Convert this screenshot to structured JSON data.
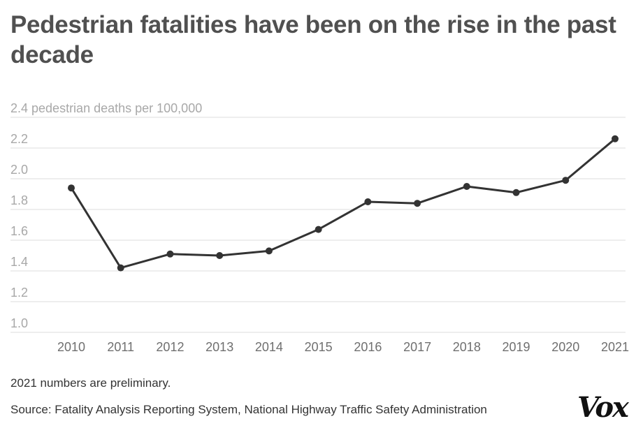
{
  "title": "Pedestrian fatalities have been on the rise in the past decade",
  "note": "2021 numbers are preliminary.",
  "source": "Source: Fatality Analysis Reporting System, National Highway Traffic Safety Administration",
  "logo": "Vox",
  "chart_data": {
    "type": "line",
    "title": "",
    "xlabel": "",
    "ylabel": "pedestrian deaths per 100,000",
    "x": [
      "2010",
      "2011",
      "2012",
      "2013",
      "2014",
      "2015",
      "2016",
      "2017",
      "2018",
      "2019",
      "2020",
      "2021"
    ],
    "series": [
      {
        "name": "",
        "values": [
          1.94,
          1.42,
          1.51,
          1.5,
          1.53,
          1.67,
          1.85,
          1.84,
          1.95,
          1.91,
          1.99,
          2.26
        ]
      }
    ],
    "ylim": [
      1.0,
      2.4
    ],
    "yticks": [
      1.0,
      1.2,
      1.4,
      1.6,
      1.8,
      2.0,
      2.2,
      2.4
    ],
    "ytick_labels": [
      "1.0",
      "1.2",
      "1.4",
      "1.6",
      "1.8",
      "2.0",
      "2.2",
      "2.4 pedestrian deaths per 100,000"
    ],
    "grid": true,
    "line_color": "#333333",
    "grid_color": "#dddddd"
  }
}
